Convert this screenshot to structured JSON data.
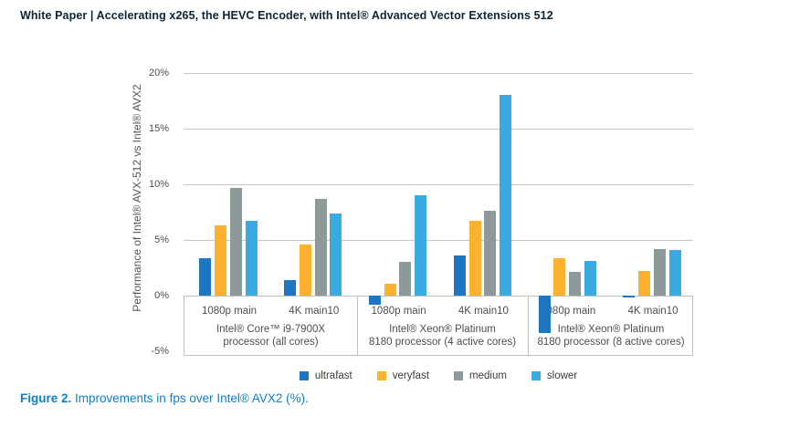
{
  "header": {
    "title": "White Paper | Accelerating x265, the HEVC Encoder, with Intel® Advanced Vector Extensions 512"
  },
  "figure_caption": {
    "label": "Figure 2.",
    "text": "Improvements in fps over Intel® AVX2 (%)."
  },
  "chart_data": {
    "type": "bar",
    "title": "",
    "xlabel": "",
    "ylabel": "Performance of Intel® AVX-512 vs Intel® AVX2",
    "ylim": [
      -5,
      20
    ],
    "grid": true,
    "legend_position": "bottom",
    "yticks": [
      {
        "value": 20,
        "label": "20%"
      },
      {
        "value": 15,
        "label": "15%"
      },
      {
        "value": 10,
        "label": "10%"
      },
      {
        "value": 5,
        "label": "5%"
      },
      {
        "value": 0,
        "label": "0%"
      },
      {
        "value": -5,
        "label": "-5%"
      }
    ],
    "groups": [
      {
        "section": 0,
        "category": "1080p main"
      },
      {
        "section": 0,
        "category": "4K main10"
      },
      {
        "section": 1,
        "category": "1080p main"
      },
      {
        "section": 1,
        "category": "4K main10"
      },
      {
        "section": 2,
        "category": "1080p main"
      },
      {
        "section": 2,
        "category": "4K main10"
      }
    ],
    "sections": [
      {
        "lines": [
          "Intel® Core™ i9-7900X",
          "processor (all cores)"
        ]
      },
      {
        "lines": [
          "Intel® Xeon® Platinum",
          "8180 processor (4 active cores)"
        ]
      },
      {
        "lines": [
          "Intel® Xeon® Platinum",
          "8180 processor (8 active cores)"
        ]
      }
    ],
    "series": [
      {
        "name": "ultrafast",
        "color": "#1d76c1",
        "values": [
          3.4,
          1.4,
          -0.8,
          3.6,
          -3.4,
          -0.2
        ]
      },
      {
        "name": "veryfast",
        "color": "#fcb22e",
        "values": [
          6.3,
          4.6,
          1.1,
          6.7,
          3.4,
          2.2
        ]
      },
      {
        "name": "medium",
        "color": "#8e999c",
        "values": [
          9.7,
          8.7,
          3.0,
          7.6,
          2.1,
          4.2
        ]
      },
      {
        "name": "slower",
        "color": "#39abe0",
        "values": [
          6.7,
          7.4,
          9.0,
          18.0,
          3.1,
          4.1
        ]
      }
    ]
  },
  "colors": {
    "caption_blue": "#0f7ecb",
    "header_text": "#0d2436",
    "gridline": "#c6c6c6",
    "box_border": "#c0c0c0",
    "axis_text": "#4d4d4d"
  }
}
